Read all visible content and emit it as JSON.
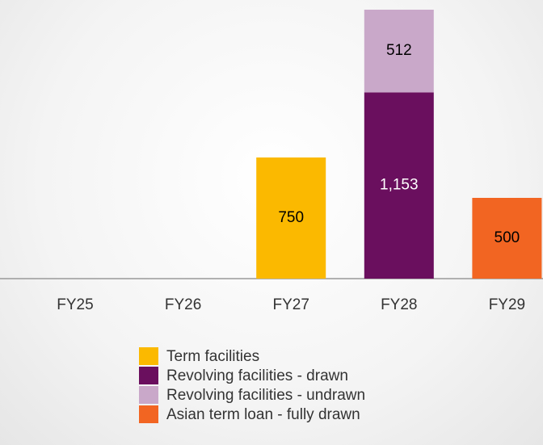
{
  "chart_data": {
    "type": "bar",
    "stacked": true,
    "categories": [
      "FY25",
      "FY26",
      "FY27",
      "FY28",
      "FY29"
    ],
    "series": [
      {
        "name": "Term facilities",
        "color": "#fbb900",
        "label_color": "#000000",
        "values": [
          null,
          null,
          750,
          null,
          null
        ],
        "value_labels": [
          null,
          null,
          "750",
          null,
          null
        ]
      },
      {
        "name": "Revolving facilities - drawn",
        "color": "#6a0f5e",
        "label_color": "#ffffff",
        "values": [
          null,
          null,
          null,
          1153,
          null
        ],
        "value_labels": [
          null,
          null,
          null,
          "1,153",
          null
        ]
      },
      {
        "name": "Revolving facilities - undrawn",
        "color": "#c9a8c9",
        "label_color": "#000000",
        "values": [
          null,
          null,
          null,
          512,
          null
        ],
        "value_labels": [
          null,
          null,
          null,
          "512",
          null
        ]
      },
      {
        "name": "Asian term loan - fully drawn",
        "color": "#f26522",
        "label_color": "#000000",
        "values": [
          null,
          null,
          null,
          null,
          500
        ],
        "value_labels": [
          null,
          null,
          null,
          null,
          "500"
        ]
      }
    ]
  }
}
